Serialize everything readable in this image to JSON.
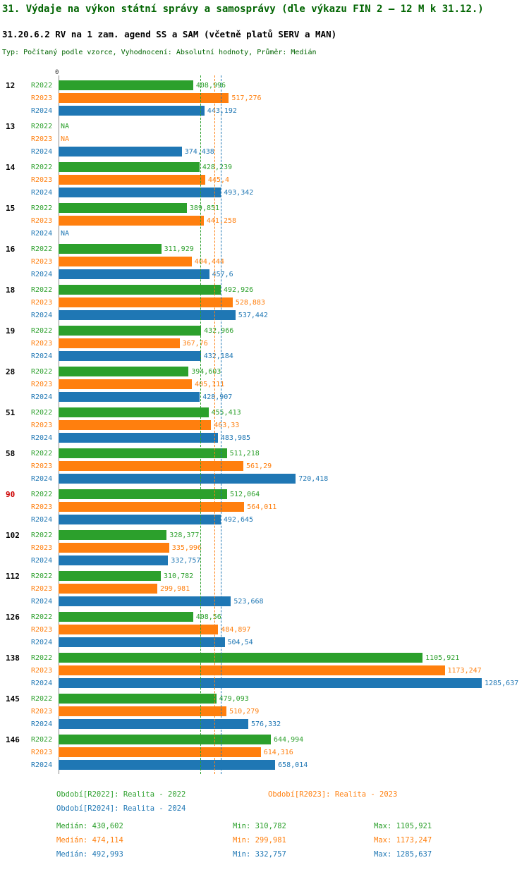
{
  "title": "31. Výdaje na výkon státní správy a samosprávy (dle výkazu FIN 2 – 12 M k 31.12.)",
  "subtitle": "31.20.6.2 RV na 1 zam. agend SS a SAM (včetně platů SERV a MAN)",
  "meta": "Typ: Počítaný podle vzorce, Vyhodnocení: Absolutní hodnoty, Průměr: Medián",
  "colors": {
    "title": "#006400",
    "highlight_group": "#cc0000",
    "axis": "#8a8a8a"
  },
  "chart_data": {
    "type": "bar",
    "orientation": "horizontal",
    "x_origin_label": "0",
    "xmax": 1285.637,
    "grid": false,
    "series": [
      {
        "name": "R2022",
        "color": "#2ca02c",
        "legend": "Období[R2022]: Realita - 2022",
        "median_value": 430.602,
        "median_text": "Medián: 430,602",
        "min_text": "Min: 310,782",
        "max_text": "Max: 1105,921"
      },
      {
        "name": "R2023",
        "color": "#ff7f0e",
        "legend": "Období[R2023]: Realita - 2023",
        "median_value": 474.114,
        "median_text": "Medián: 474,114",
        "min_text": "Min: 299,981",
        "max_text": "Max: 1173,247"
      },
      {
        "name": "R2024",
        "color": "#1f77b4",
        "legend": "Období[R2024]: Realita - 2024",
        "median_value": 492.993,
        "median_text": "Medián: 492,993",
        "min_text": "Min: 332,757",
        "max_text": "Max: 1285,637"
      }
    ],
    "groups": [
      {
        "label": "12",
        "highlight": false,
        "values": [
          408.996,
          517.276,
          443.192
        ],
        "display": [
          "408,996",
          "517,276",
          "443,192"
        ]
      },
      {
        "label": "13",
        "highlight": false,
        "values": [
          null,
          null,
          374.438
        ],
        "display": [
          "NA",
          "NA",
          "374,438"
        ]
      },
      {
        "label": "14",
        "highlight": false,
        "values": [
          428.239,
          445.4,
          493.342
        ],
        "display": [
          "428,239",
          "445,4",
          "493,342"
        ]
      },
      {
        "label": "15",
        "highlight": false,
        "values": [
          389.851,
          441.258,
          null
        ],
        "display": [
          "389,851",
          "441,258",
          "NA"
        ]
      },
      {
        "label": "16",
        "highlight": false,
        "values": [
          311.929,
          404.444,
          457.6
        ],
        "display": [
          "311,929",
          "404,444",
          "457,6"
        ]
      },
      {
        "label": "18",
        "highlight": false,
        "values": [
          492.926,
          528.883,
          537.442
        ],
        "display": [
          "492,926",
          "528,883",
          "537,442"
        ]
      },
      {
        "label": "19",
        "highlight": false,
        "values": [
          432.966,
          367.76,
          432.184
        ],
        "display": [
          "432,966",
          "367,76",
          "432,184"
        ]
      },
      {
        "label": "28",
        "highlight": false,
        "values": [
          394.603,
          405.111,
          428.907
        ],
        "display": [
          "394,603",
          "405,111",
          "428,907"
        ]
      },
      {
        "label": "51",
        "highlight": false,
        "values": [
          455.413,
          463.33,
          483.985
        ],
        "display": [
          "455,413",
          "463,33",
          "483,985"
        ]
      },
      {
        "label": "58",
        "highlight": false,
        "values": [
          511.218,
          561.29,
          720.418
        ],
        "display": [
          "511,218",
          "561,29",
          "720,418"
        ]
      },
      {
        "label": "90",
        "highlight": true,
        "values": [
          512.064,
          564.011,
          492.645
        ],
        "display": [
          "512,064",
          "564,011",
          "492,645"
        ]
      },
      {
        "label": "102",
        "highlight": false,
        "values": [
          328.377,
          335.996,
          332.757
        ],
        "display": [
          "328,377",
          "335,996",
          "332,757"
        ]
      },
      {
        "label": "112",
        "highlight": false,
        "values": [
          310.782,
          299.981,
          523.668
        ],
        "display": [
          "310,782",
          "299,981",
          "523,668"
        ]
      },
      {
        "label": "126",
        "highlight": false,
        "values": [
          408.56,
          484.897,
          504.54
        ],
        "display": [
          "408,56",
          "484,897",
          "504,54"
        ]
      },
      {
        "label": "138",
        "highlight": false,
        "values": [
          1105.921,
          1173.247,
          1285.637
        ],
        "display": [
          "1105,921",
          "1173,247",
          "1285,637"
        ]
      },
      {
        "label": "145",
        "highlight": false,
        "values": [
          479.093,
          510.279,
          576.332
        ],
        "display": [
          "479,093",
          "510,279",
          "576,332"
        ]
      },
      {
        "label": "146",
        "highlight": false,
        "values": [
          644.994,
          614.316,
          658.014
        ],
        "display": [
          "644,994",
          "614,316",
          "658,014"
        ]
      }
    ]
  }
}
